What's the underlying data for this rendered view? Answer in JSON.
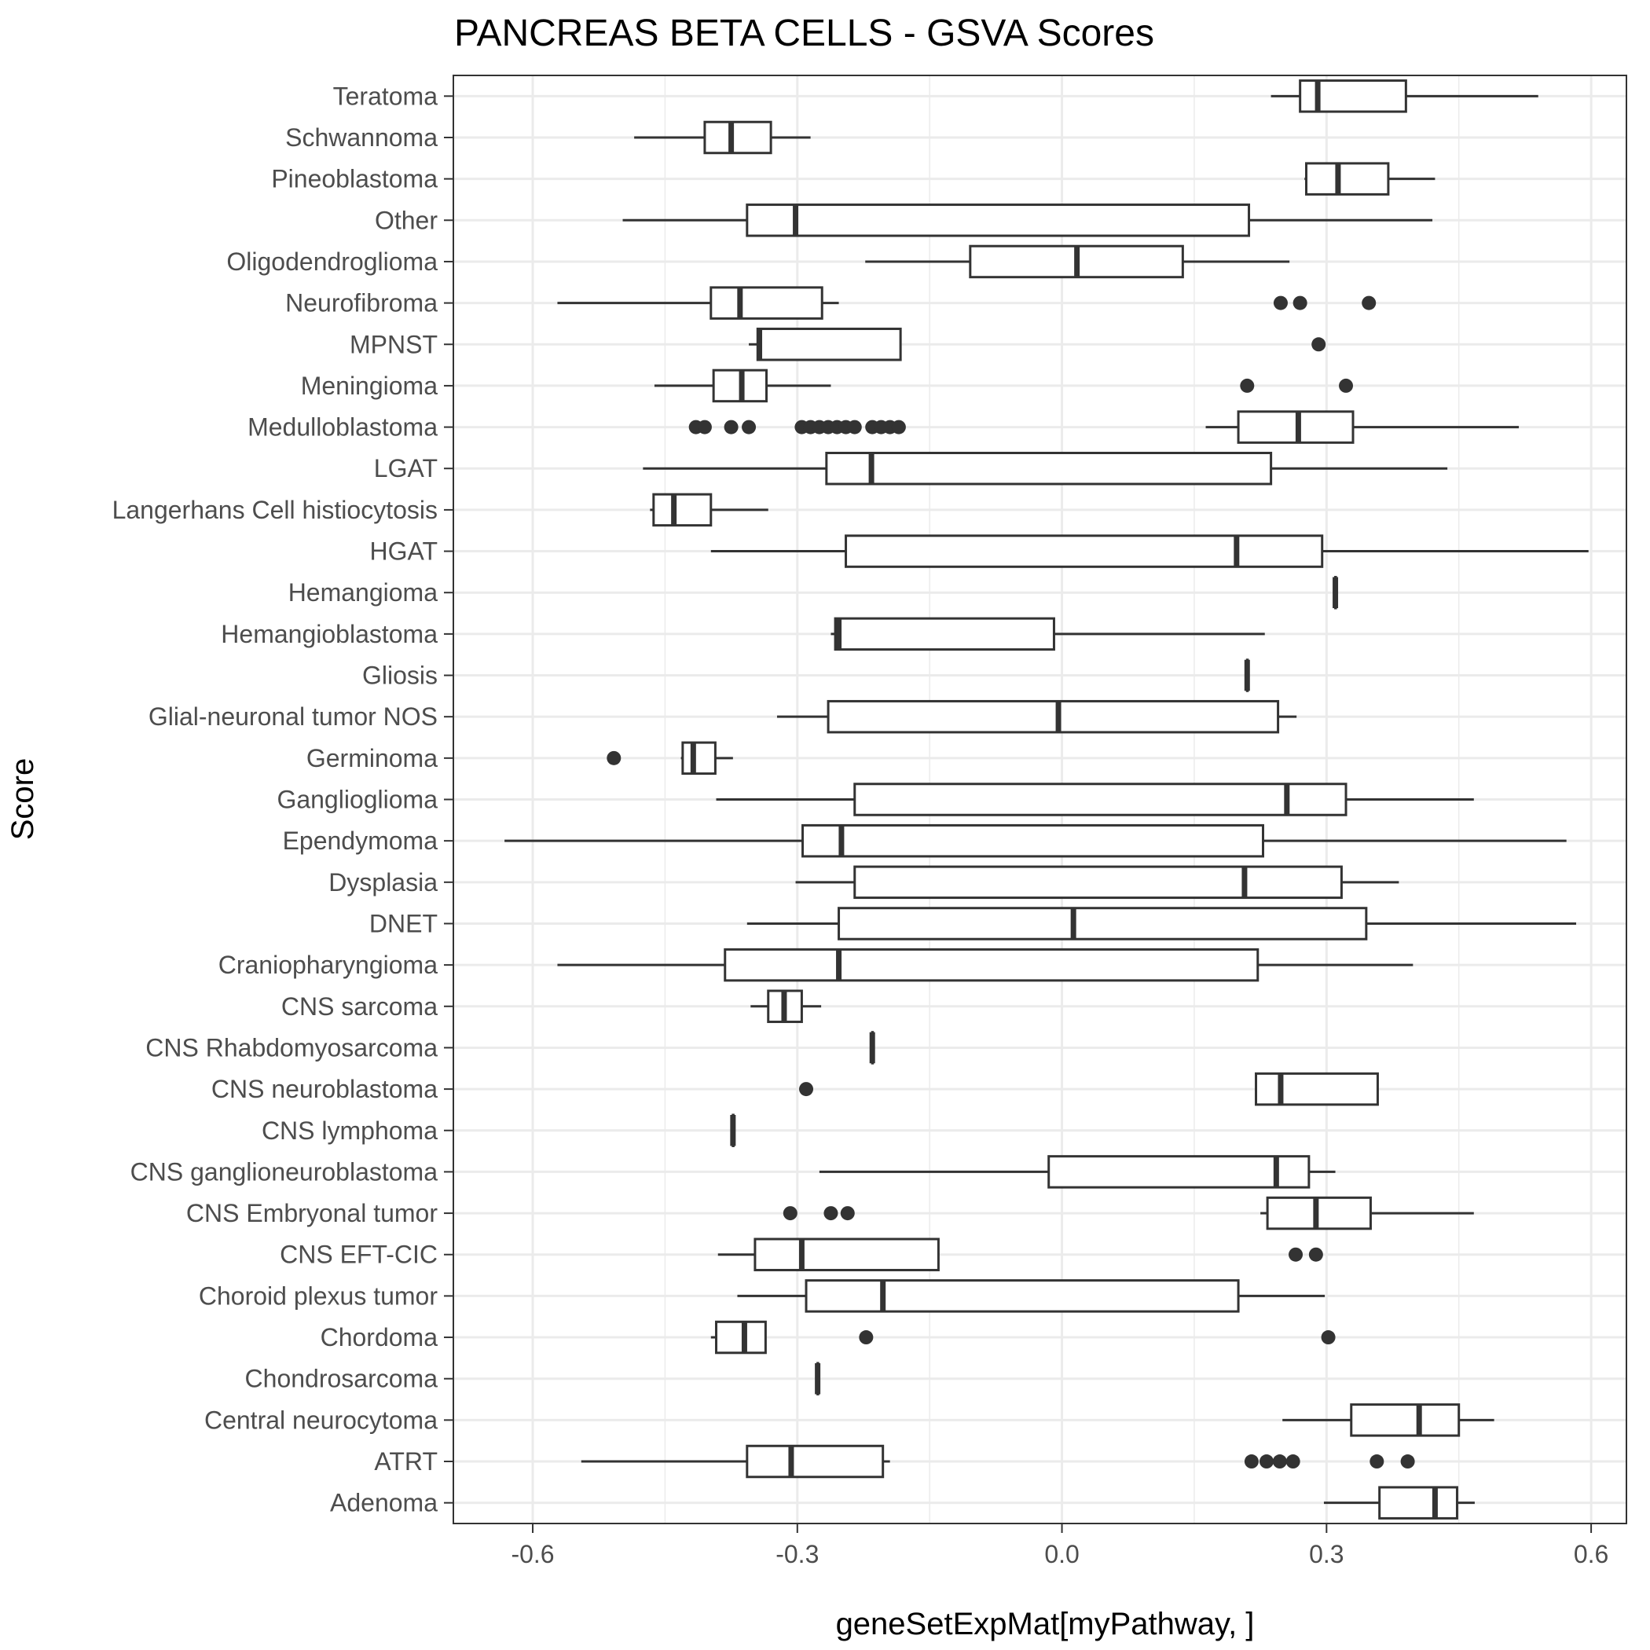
{
  "chart_data": {
    "type": "boxplot",
    "orientation": "horizontal",
    "title": "PANCREAS BETA CELLS - GSVA Scores",
    "xlabel": "geneSetExpMat[myPathway, ]",
    "ylabel": "Score",
    "xlim": [
      -0.69,
      0.64
    ],
    "xticks": [
      -0.6,
      -0.3,
      0.0,
      0.3,
      0.6
    ],
    "xtick_labels": [
      "-0.6",
      "-0.3",
      "0.0",
      "0.3",
      "0.6"
    ],
    "grid": true,
    "colors": {
      "box_stroke": "#333333",
      "grid": "#ebebeb",
      "panel_border": "#333333",
      "box_fill": "#ffffff"
    },
    "categories": [
      "Teratoma",
      "Schwannoma",
      "Pineoblastoma",
      "Other",
      "Oligodendroglioma",
      "Neurofibroma",
      "MPNST",
      "Meningioma",
      "Medulloblastoma",
      "LGAT",
      "Langerhans Cell histiocytosis",
      "HGAT",
      "Hemangioma",
      "Hemangioblastoma",
      "Gliosis",
      "Glial-neuronal tumor NOS",
      "Germinoma",
      "Ganglioglioma",
      "Ependymoma",
      "Dysplasia",
      "DNET",
      "Craniopharyngioma",
      "CNS sarcoma",
      "CNS Rhabdomyosarcoma",
      "CNS neuroblastoma",
      "CNS lymphoma",
      "CNS ganglioneuroblastoma",
      "CNS Embryonal tumor",
      "CNS EFT-CIC",
      "Choroid plexus tumor",
      "Chordoma",
      "Chondrosarcoma",
      "Central neurocytoma",
      "ATRT",
      "Adenoma"
    ],
    "boxes": [
      {
        "whisker_low": 0.237,
        "q1": 0.27,
        "median": 0.29,
        "q3": 0.39,
        "whisker_high": 0.54,
        "outliers": []
      },
      {
        "whisker_low": -0.485,
        "q1": -0.405,
        "median": -0.375,
        "q3": -0.33,
        "whisker_high": -0.285,
        "outliers": []
      },
      {
        "whisker_low": 0.275,
        "q1": 0.277,
        "median": 0.313,
        "q3": 0.37,
        "whisker_high": 0.423,
        "outliers": []
      },
      {
        "whisker_low": -0.498,
        "q1": -0.357,
        "median": -0.302,
        "q3": 0.212,
        "whisker_high": 0.42,
        "outliers": []
      },
      {
        "whisker_low": -0.223,
        "q1": -0.104,
        "median": 0.017,
        "q3": 0.137,
        "whisker_high": 0.258,
        "outliers": []
      },
      {
        "whisker_low": -0.572,
        "q1": -0.398,
        "median": -0.365,
        "q3": -0.272,
        "whisker_high": -0.253,
        "outliers": [
          0.248,
          0.27,
          0.348
        ]
      },
      {
        "whisker_low": -0.355,
        "q1": -0.345,
        "median": -0.343,
        "q3": -0.183,
        "whisker_high": -0.183,
        "outliers": [
          0.291
        ]
      },
      {
        "whisker_low": -0.462,
        "q1": -0.395,
        "median": -0.363,
        "q3": -0.335,
        "whisker_high": -0.262,
        "outliers": [
          0.21,
          0.322
        ]
      },
      {
        "whisker_low": 0.163,
        "q1": 0.2,
        "median": 0.268,
        "q3": 0.33,
        "whisker_high": 0.518,
        "outliers": [
          -0.415,
          -0.405,
          -0.375,
          -0.355,
          -0.295,
          -0.285,
          -0.275,
          -0.265,
          -0.255,
          -0.245,
          -0.235,
          -0.215,
          -0.205,
          -0.195,
          -0.185
        ]
      },
      {
        "whisker_low": -0.475,
        "q1": -0.267,
        "median": -0.216,
        "q3": 0.237,
        "whisker_high": 0.437,
        "outliers": []
      },
      {
        "whisker_low": -0.467,
        "q1": -0.463,
        "median": -0.44,
        "q3": -0.398,
        "whisker_high": -0.333,
        "outliers": []
      },
      {
        "whisker_low": -0.398,
        "q1": -0.245,
        "median": 0.198,
        "q3": 0.295,
        "whisker_high": 0.597,
        "outliers": []
      },
      {
        "whisker_low": 0.31,
        "q1": 0.31,
        "median": 0.31,
        "q3": 0.31,
        "whisker_high": 0.31,
        "outliers": []
      },
      {
        "whisker_low": -0.262,
        "q1": -0.257,
        "median": -0.253,
        "q3": -0.009,
        "whisker_high": 0.23,
        "outliers": []
      },
      {
        "whisker_low": 0.21,
        "q1": 0.21,
        "median": 0.21,
        "q3": 0.21,
        "whisker_high": 0.21,
        "outliers": []
      },
      {
        "whisker_low": -0.323,
        "q1": -0.265,
        "median": -0.004,
        "q3": 0.245,
        "whisker_high": 0.266,
        "outliers": []
      },
      {
        "whisker_low": -0.432,
        "q1": -0.43,
        "median": -0.418,
        "q3": -0.393,
        "whisker_high": -0.373,
        "outliers": [
          -0.508
        ]
      },
      {
        "whisker_low": -0.392,
        "q1": -0.235,
        "median": 0.255,
        "q3": 0.322,
        "whisker_high": 0.467,
        "outliers": []
      },
      {
        "whisker_low": -0.632,
        "q1": -0.294,
        "median": -0.25,
        "q3": 0.228,
        "whisker_high": 0.572,
        "outliers": []
      },
      {
        "whisker_low": -0.302,
        "q1": -0.235,
        "median": 0.207,
        "q3": 0.317,
        "whisker_high": 0.382,
        "outliers": []
      },
      {
        "whisker_low": -0.357,
        "q1": -0.253,
        "median": 0.013,
        "q3": 0.345,
        "whisker_high": 0.583,
        "outliers": []
      },
      {
        "whisker_low": -0.572,
        "q1": -0.382,
        "median": -0.253,
        "q3": 0.222,
        "whisker_high": 0.398,
        "outliers": []
      },
      {
        "whisker_low": -0.353,
        "q1": -0.333,
        "median": -0.315,
        "q3": -0.295,
        "whisker_high": -0.273,
        "outliers": []
      },
      {
        "whisker_low": -0.215,
        "q1": -0.215,
        "median": -0.215,
        "q3": -0.215,
        "whisker_high": -0.215,
        "outliers": []
      },
      {
        "whisker_low": 0.22,
        "q1": 0.22,
        "median": 0.248,
        "q3": 0.358,
        "whisker_high": 0.358,
        "outliers": [
          -0.29
        ]
      },
      {
        "whisker_low": -0.373,
        "q1": -0.373,
        "median": -0.373,
        "q3": -0.373,
        "whisker_high": -0.373,
        "outliers": []
      },
      {
        "whisker_low": -0.275,
        "q1": -0.015,
        "median": 0.243,
        "q3": 0.28,
        "whisker_high": 0.31,
        "outliers": []
      },
      {
        "whisker_low": 0.225,
        "q1": 0.233,
        "median": 0.288,
        "q3": 0.35,
        "whisker_high": 0.467,
        "outliers": [
          -0.308,
          -0.262,
          -0.243
        ]
      },
      {
        "whisker_low": -0.39,
        "q1": -0.348,
        "median": -0.295,
        "q3": -0.14,
        "whisker_high": -0.14,
        "outliers": [
          0.265,
          0.288
        ]
      },
      {
        "whisker_low": -0.368,
        "q1": -0.29,
        "median": -0.203,
        "q3": 0.2,
        "whisker_high": 0.298,
        "outliers": []
      },
      {
        "whisker_low": -0.398,
        "q1": -0.392,
        "median": -0.36,
        "q3": -0.336,
        "whisker_high": -0.336,
        "outliers": [
          -0.222,
          0.302
        ]
      },
      {
        "whisker_low": -0.277,
        "q1": -0.277,
        "median": -0.277,
        "q3": -0.277,
        "whisker_high": -0.277,
        "outliers": []
      },
      {
        "whisker_low": 0.25,
        "q1": 0.328,
        "median": 0.405,
        "q3": 0.45,
        "whisker_high": 0.49,
        "outliers": []
      },
      {
        "whisker_low": -0.545,
        "q1": -0.357,
        "median": -0.307,
        "q3": -0.203,
        "whisker_high": -0.195,
        "outliers": [
          0.215,
          0.232,
          0.247,
          0.262,
          0.357,
          0.392
        ]
      },
      {
        "whisker_low": 0.297,
        "q1": 0.36,
        "median": 0.423,
        "q3": 0.448,
        "whisker_high": 0.468,
        "outliers": []
      }
    ]
  }
}
